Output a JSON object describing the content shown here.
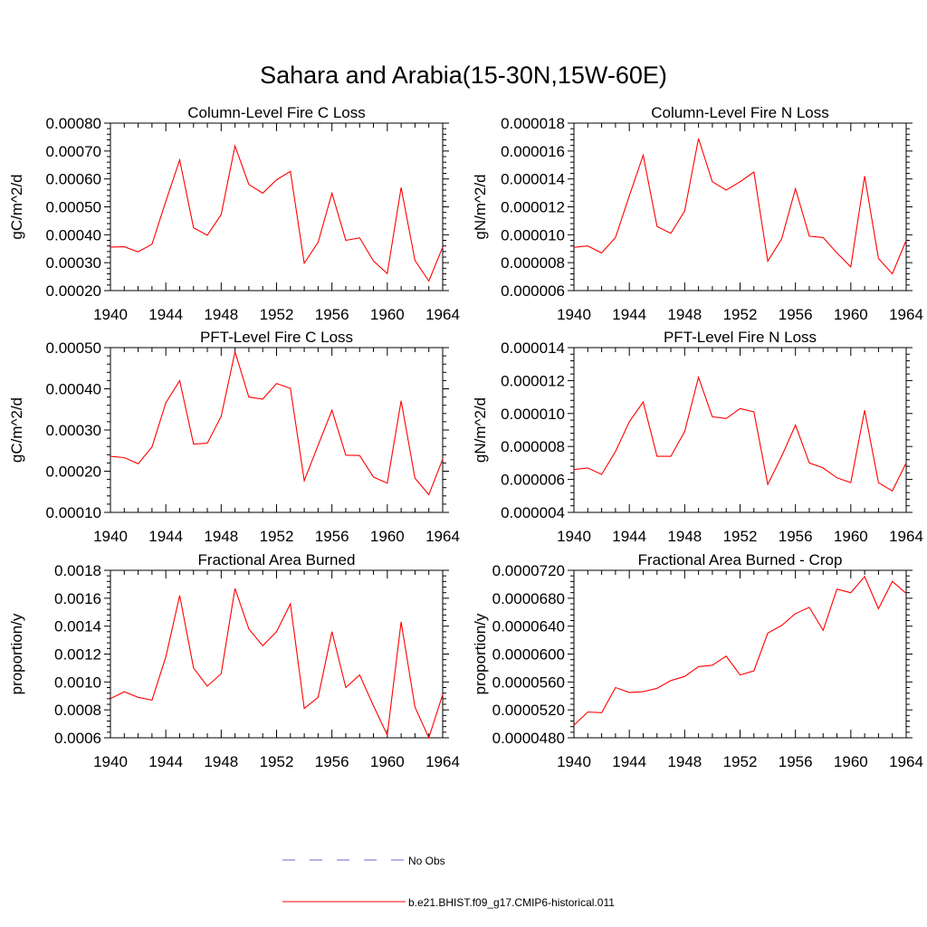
{
  "page": {
    "title": "Sahara and Arabia(15-30N,15W-60E)"
  },
  "legend": {
    "items": [
      {
        "label": "No Obs",
        "color": "#6a6ad0",
        "dash": true
      },
      {
        "label": "b.e21.BHIST.f09_g17.CMIP6-historical.011",
        "color": "#ff0000",
        "dash": false
      }
    ]
  },
  "chart_data": [
    {
      "type": "line",
      "title": "Column-Level Fire C Loss",
      "ylabel": "gC/m^2/d",
      "xlim": [
        1940,
        1964
      ],
      "ylim": [
        0.0002,
        0.0008
      ],
      "xticks": [
        1940,
        1944,
        1948,
        1952,
        1956,
        1960,
        1964
      ],
      "yticks": [
        "0.00020",
        "0.00030",
        "0.00040",
        "0.00050",
        "0.00060",
        "0.00070",
        "0.00080"
      ],
      "x": [
        1940,
        1941,
        1942,
        1943,
        1944,
        1945,
        1946,
        1947,
        1948,
        1949,
        1950,
        1951,
        1952,
        1953,
        1954,
        1955,
        1956,
        1957,
        1958,
        1959,
        1960,
        1961,
        1962,
        1963,
        1964
      ],
      "series": [
        {
          "name": "b.e21.BHIST.f09_g17.CMIP6-historical.011",
          "color": "#ff0000",
          "values": [
            0.000356,
            0.000357,
            0.000339,
            0.000366,
            0.00052,
            0.000668,
            0.000425,
            0.000398,
            0.000472,
            0.000718,
            0.00058,
            0.000549,
            0.000597,
            0.000627,
            0.000298,
            0.000373,
            0.000549,
            0.00038,
            0.000389,
            0.000306,
            0.000261,
            0.000569,
            0.000308,
            0.000234,
            0.000356
          ]
        }
      ]
    },
    {
      "type": "line",
      "title": "Column-Level Fire N Loss",
      "ylabel": "gN/m^2/d",
      "xlim": [
        1940,
        1964
      ],
      "ylim": [
        6e-06,
        1.8e-05
      ],
      "xticks": [
        1940,
        1944,
        1948,
        1952,
        1956,
        1960,
        1964
      ],
      "yticks": [
        "0.000006",
        "0.000008",
        "0.000010",
        "0.000012",
        "0.000014",
        "0.000016",
        "0.000018"
      ],
      "x": [
        1940,
        1941,
        1942,
        1943,
        1944,
        1945,
        1946,
        1947,
        1948,
        1949,
        1950,
        1951,
        1952,
        1953,
        1954,
        1955,
        1956,
        1957,
        1958,
        1959,
        1960,
        1961,
        1962,
        1963,
        1964
      ],
      "series": [
        {
          "name": "b.e21.BHIST.f09_g17.CMIP6-historical.011",
          "color": "#ff0000",
          "values": [
            9.1e-06,
            9.2e-06,
            8.7e-06,
            9.8e-06,
            1.28e-05,
            1.57e-05,
            1.06e-05,
            1.01e-05,
            1.17e-05,
            1.69e-05,
            1.38e-05,
            1.32e-05,
            1.38e-05,
            1.45e-05,
            8.1e-06,
            9.7e-06,
            1.33e-05,
            9.9e-06,
            9.8e-06,
            8.7e-06,
            7.7e-06,
            1.42e-05,
            8.3e-06,
            7.2e-06,
            9.6e-06
          ]
        }
      ]
    },
    {
      "type": "line",
      "title": "PFT-Level Fire C Loss",
      "ylabel": "gC/m^2/d",
      "xlim": [
        1940,
        1964
      ],
      "ylim": [
        0.0001,
        0.0005
      ],
      "xticks": [
        1940,
        1944,
        1948,
        1952,
        1956,
        1960,
        1964
      ],
      "yticks": [
        "0.00010",
        "0.00020",
        "0.00030",
        "0.00040",
        "0.00050"
      ],
      "x": [
        1940,
        1941,
        1942,
        1943,
        1944,
        1945,
        1946,
        1947,
        1948,
        1949,
        1950,
        1951,
        1952,
        1953,
        1954,
        1955,
        1956,
        1957,
        1958,
        1959,
        1960,
        1961,
        1962,
        1963,
        1964
      ],
      "series": [
        {
          "name": "b.e21.BHIST.f09_g17.CMIP6-historical.011",
          "color": "#ff0000",
          "values": [
            0.000236,
            0.000233,
            0.000218,
            0.000259,
            0.000366,
            0.00042,
            0.000266,
            0.000268,
            0.000333,
            0.00049,
            0.00038,
            0.000375,
            0.000413,
            0.000401,
            0.000177,
            0.000263,
            0.000348,
            0.000239,
            0.000238,
            0.000186,
            0.000171,
            0.000371,
            0.000183,
            0.000143,
            0.000229
          ]
        }
      ]
    },
    {
      "type": "line",
      "title": "PFT-Level Fire N Loss",
      "ylabel": "gN/m^2/d",
      "xlim": [
        1940,
        1964
      ],
      "ylim": [
        4e-06,
        1.4e-05
      ],
      "xticks": [
        1940,
        1944,
        1948,
        1952,
        1956,
        1960,
        1964
      ],
      "yticks": [
        "0.000004",
        "0.000006",
        "0.000008",
        "0.000010",
        "0.000012",
        "0.000014"
      ],
      "x": [
        1940,
        1941,
        1942,
        1943,
        1944,
        1945,
        1946,
        1947,
        1948,
        1949,
        1950,
        1951,
        1952,
        1953,
        1954,
        1955,
        1956,
        1957,
        1958,
        1959,
        1960,
        1961,
        1962,
        1963,
        1964
      ],
      "series": [
        {
          "name": "b.e21.BHIST.f09_g17.CMIP6-historical.011",
          "color": "#ff0000",
          "values": [
            6.6e-06,
            6.7e-06,
            6.3e-06,
            7.7e-06,
            9.5e-06,
            1.07e-05,
            7.4e-06,
            7.4e-06,
            8.9e-06,
            1.22e-05,
            9.8e-06,
            9.7e-06,
            1.03e-05,
            1.01e-05,
            5.7e-06,
            7.4e-06,
            9.3e-06,
            7e-06,
            6.7e-06,
            6.1e-06,
            5.8e-06,
            1.02e-05,
            5.8e-06,
            5.3e-06,
            7e-06
          ]
        }
      ]
    },
    {
      "type": "line",
      "title": "Fractional Area Burned",
      "ylabel": "proportion/y",
      "xlim": [
        1940,
        1964
      ],
      "ylim": [
        0.0006,
        0.0018
      ],
      "xticks": [
        1940,
        1944,
        1948,
        1952,
        1956,
        1960,
        1964
      ],
      "yticks": [
        "0.0006",
        "0.0008",
        "0.0010",
        "0.0012",
        "0.0014",
        "0.0016",
        "0.0018"
      ],
      "x": [
        1940,
        1941,
        1942,
        1943,
        1944,
        1945,
        1946,
        1947,
        1948,
        1949,
        1950,
        1951,
        1952,
        1953,
        1954,
        1955,
        1956,
        1957,
        1958,
        1959,
        1960,
        1961,
        1962,
        1963,
        1964
      ],
      "series": [
        {
          "name": "b.e21.BHIST.f09_g17.CMIP6-historical.011",
          "color": "#ff0000",
          "values": [
            0.00088,
            0.00093,
            0.00089,
            0.00087,
            0.00118,
            0.00162,
            0.0011,
            0.00097,
            0.00106,
            0.00167,
            0.00138,
            0.00126,
            0.00136,
            0.00156,
            0.00081,
            0.00089,
            0.00136,
            0.00096,
            0.00105,
            0.00083,
            0.00062,
            0.00143,
            0.00082,
            0.0006,
            0.00091
          ]
        }
      ]
    },
    {
      "type": "line",
      "title": "Fractional Area Burned - Crop",
      "ylabel": "proportion/y",
      "xlim": [
        1940,
        1964
      ],
      "ylim": [
        4.8e-05,
        7.2e-05
      ],
      "xticks": [
        1940,
        1944,
        1948,
        1952,
        1956,
        1960,
        1964
      ],
      "yticks": [
        "0.0000480",
        "0.0000520",
        "0.0000560",
        "0.0000600",
        "0.0000640",
        "0.0000680",
        "0.0000720"
      ],
      "x": [
        1940,
        1941,
        1942,
        1943,
        1944,
        1945,
        1946,
        1947,
        1948,
        1949,
        1950,
        1951,
        1952,
        1953,
        1954,
        1955,
        1956,
        1957,
        1958,
        1959,
        1960,
        1961,
        1962,
        1963,
        1964
      ],
      "series": [
        {
          "name": "b.e21.BHIST.f09_g17.CMIP6-historical.011",
          "color": "#ff0000",
          "values": [
            4.98e-05,
            5.17e-05,
            5.16e-05,
            5.52e-05,
            5.45e-05,
            5.46e-05,
            5.51e-05,
            5.62e-05,
            5.68e-05,
            5.82e-05,
            5.84e-05,
            5.97e-05,
            5.7e-05,
            5.76e-05,
            6.3e-05,
            6.41e-05,
            6.58e-05,
            6.67e-05,
            6.34e-05,
            6.93e-05,
            6.88e-05,
            7.11e-05,
            6.65e-05,
            7.04e-05,
            6.87e-05
          ]
        }
      ]
    }
  ]
}
